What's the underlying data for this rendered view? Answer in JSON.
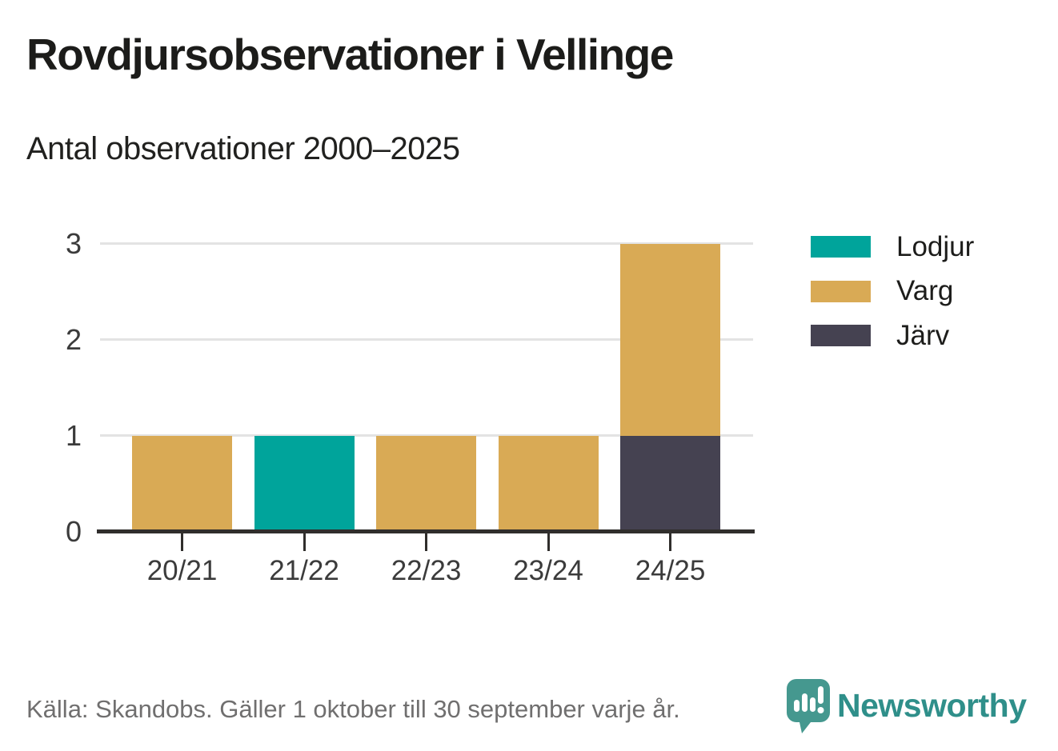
{
  "header": {
    "title": "Rovdjursobservationer i Vellinge",
    "subtitle": "Antal observationer 2000–2025"
  },
  "chart_data": {
    "type": "bar",
    "subtype": "stacked",
    "title": "Rovdjursobservationer i Vellinge",
    "subtitle": "Antal observationer 2000–2025",
    "categories": [
      "20/21",
      "21/22",
      "22/23",
      "23/24",
      "24/25"
    ],
    "series": [
      {
        "name": "Lodjur",
        "color": "#00A49B",
        "values": [
          0,
          1,
          0,
          0,
          0
        ]
      },
      {
        "name": "Varg",
        "color": "#D9AA55",
        "values": [
          1,
          0,
          1,
          1,
          2
        ]
      },
      {
        "name": "Järv",
        "color": "#454251",
        "values": [
          0,
          0,
          0,
          0,
          1
        ]
      }
    ],
    "stack_order_bottom_to_top": [
      "Järv",
      "Varg",
      "Lodjur"
    ],
    "totals_per_category": [
      1,
      1,
      1,
      1,
      3
    ],
    "y_ticks": [
      0,
      1,
      2,
      3
    ],
    "ylim": [
      0,
      3
    ],
    "xlabel": "",
    "ylabel": "",
    "grid": "horizontal",
    "legend_position": "right"
  },
  "colors": {
    "grid": "#E3E3E3",
    "axis": "#302E2C",
    "tick-label": "#3B3B3B",
    "title": "#1C1C1A",
    "subtitle": "#21211F",
    "legend-text": "#1D1D1B",
    "footer-text": "#706F6F",
    "brand": "#2F8F8A",
    "icon": "#45988F"
  },
  "footer": {
    "source": "Källa: Skandobs. Gäller 1 oktober till 30 september varje år.",
    "brand": "Newsworthy"
  }
}
